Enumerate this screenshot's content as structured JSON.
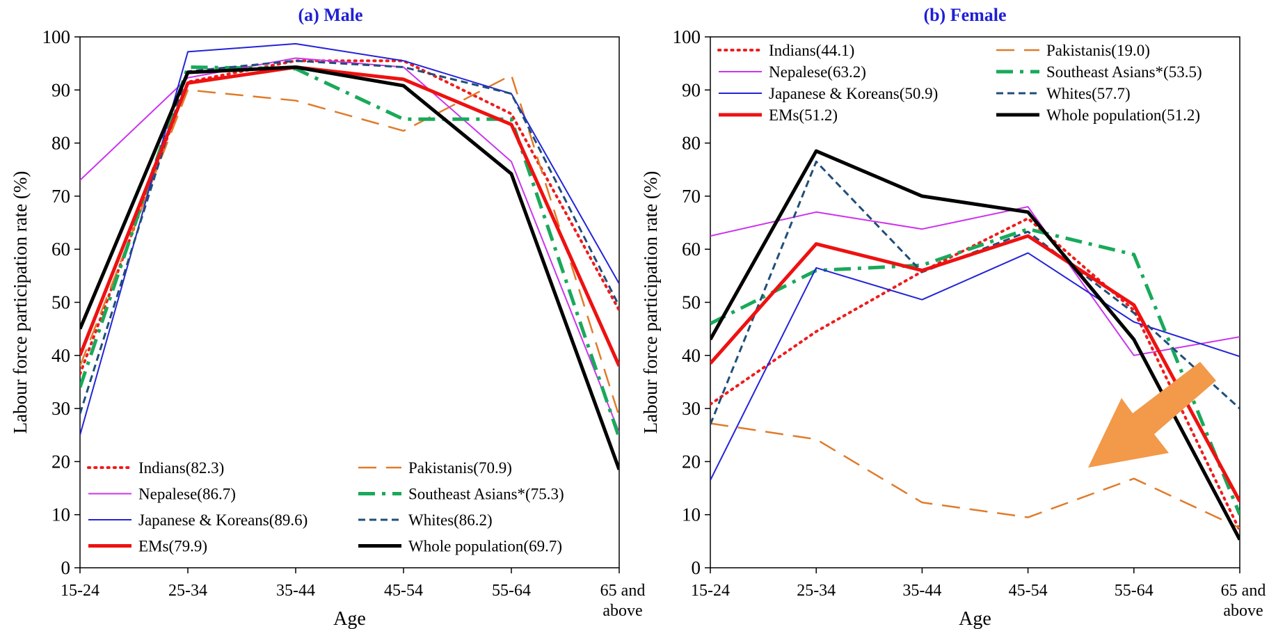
{
  "chart_data": [
    {
      "type": "line",
      "title": "(a) Male",
      "xlabel": "Age",
      "ylabel": "Labour force participation rate (%)",
      "ylim": [
        0,
        100
      ],
      "yticks": [
        "0",
        "10",
        "20",
        "30",
        "40",
        "50",
        "60",
        "70",
        "80",
        "90",
        "100"
      ],
      "categories": [
        "15-24",
        "25-34",
        "35-44",
        "45-54",
        "55-64",
        "65 and above"
      ],
      "grid": false,
      "legend_position": "bottom-inside",
      "series": [
        {
          "name": "Indians(82.3)",
          "color": "#ee1c1c",
          "style": "dotted",
          "values": [
            36.5,
            91.5,
            95.5,
            95.5,
            85.5,
            48.5
          ]
        },
        {
          "name": "Pakistanis(70.9)",
          "color": "#e07b2a",
          "style": "longdash",
          "values": [
            38,
            90,
            88,
            82.3,
            92.8,
            28.5
          ]
        },
        {
          "name": "Nepalese(86.7)",
          "color": "#cc33ee",
          "style": "solid-thin",
          "values": [
            73,
            92.3,
            96,
            94.3,
            76.5,
            25.5
          ]
        },
        {
          "name": "Southeast Asians*(75.3)",
          "color": "#19a95a",
          "style": "dashdot",
          "values": [
            34,
            94.3,
            94,
            84.5,
            84.5,
            24.5
          ]
        },
        {
          "name": "Japanese & Koreans(89.6)",
          "color": "#2323d8",
          "style": "solid-thin",
          "values": [
            25,
            97.2,
            98.7,
            95.5,
            89.3,
            53.5
          ]
        },
        {
          "name": "Whites(86.2)",
          "color": "#1f4e79",
          "style": "shortdash",
          "values": [
            29,
            93.5,
            95.5,
            94.3,
            89.3,
            49.3
          ]
        },
        {
          "name": "EMs(79.9)",
          "color": "#ee1111",
          "style": "solid-thick",
          "values": [
            40,
            91.3,
            94.3,
            92,
            83.5,
            38
          ]
        },
        {
          "name": "Whole population(69.7)",
          "color": "#000000",
          "style": "solid-thick",
          "values": [
            45,
            93.3,
            94.3,
            90.8,
            74.2,
            18.5
          ]
        }
      ]
    },
    {
      "type": "line",
      "title": "(b) Female",
      "xlabel": "Age",
      "ylabel": "Labour force participation rate (%)",
      "ylim": [
        0,
        100
      ],
      "yticks": [
        "0",
        "10",
        "20",
        "30",
        "40",
        "50",
        "60",
        "70",
        "80",
        "90",
        "100"
      ],
      "categories": [
        "15-24",
        "25-34",
        "35-44",
        "45-54",
        "55-64",
        "65 and above"
      ],
      "grid": false,
      "legend_position": "top-inside",
      "annotation": "orange arrow pointing down-left over the 55-64 to 65 and above region",
      "annotation_color": "#f2994a",
      "series": [
        {
          "name": "Indians(44.1)",
          "color": "#ee1c1c",
          "style": "dotted",
          "values": [
            30.8,
            44.5,
            55.8,
            65.8,
            48.5,
            7
          ]
        },
        {
          "name": "Pakistanis(19.0)",
          "color": "#e07b2a",
          "style": "longdash",
          "values": [
            27.2,
            24.2,
            12.3,
            9.5,
            16.8,
            7.5
          ]
        },
        {
          "name": "Nepalese(63.2)",
          "color": "#cc33ee",
          "style": "solid-thin",
          "values": [
            62.5,
            67,
            63.8,
            68,
            40,
            43.5
          ]
        },
        {
          "name": "Southeast Asians*(53.5)",
          "color": "#19a95a",
          "style": "dashdot",
          "values": [
            46,
            56,
            57,
            63.8,
            59,
            10
          ]
        },
        {
          "name": "Japanese & Koreans(50.9)",
          "color": "#2323d8",
          "style": "solid-thin",
          "values": [
            16.5,
            56.5,
            50.5,
            59.3,
            46.3,
            39.8
          ]
        },
        {
          "name": "Whites(57.7)",
          "color": "#1f4e79",
          "style": "shortdash",
          "values": [
            27,
            76.5,
            55.7,
            63.3,
            48,
            30
          ]
        },
        {
          "name": "EMs(51.2)",
          "color": "#ee1111",
          "style": "solid-thick",
          "values": [
            38.5,
            61,
            56,
            62.5,
            49.5,
            12.5
          ]
        },
        {
          "name": "Whole population(51.2)",
          "color": "#000000",
          "style": "solid-thick",
          "values": [
            43,
            78.5,
            70,
            67,
            43,
            5.3
          ]
        }
      ]
    }
  ]
}
